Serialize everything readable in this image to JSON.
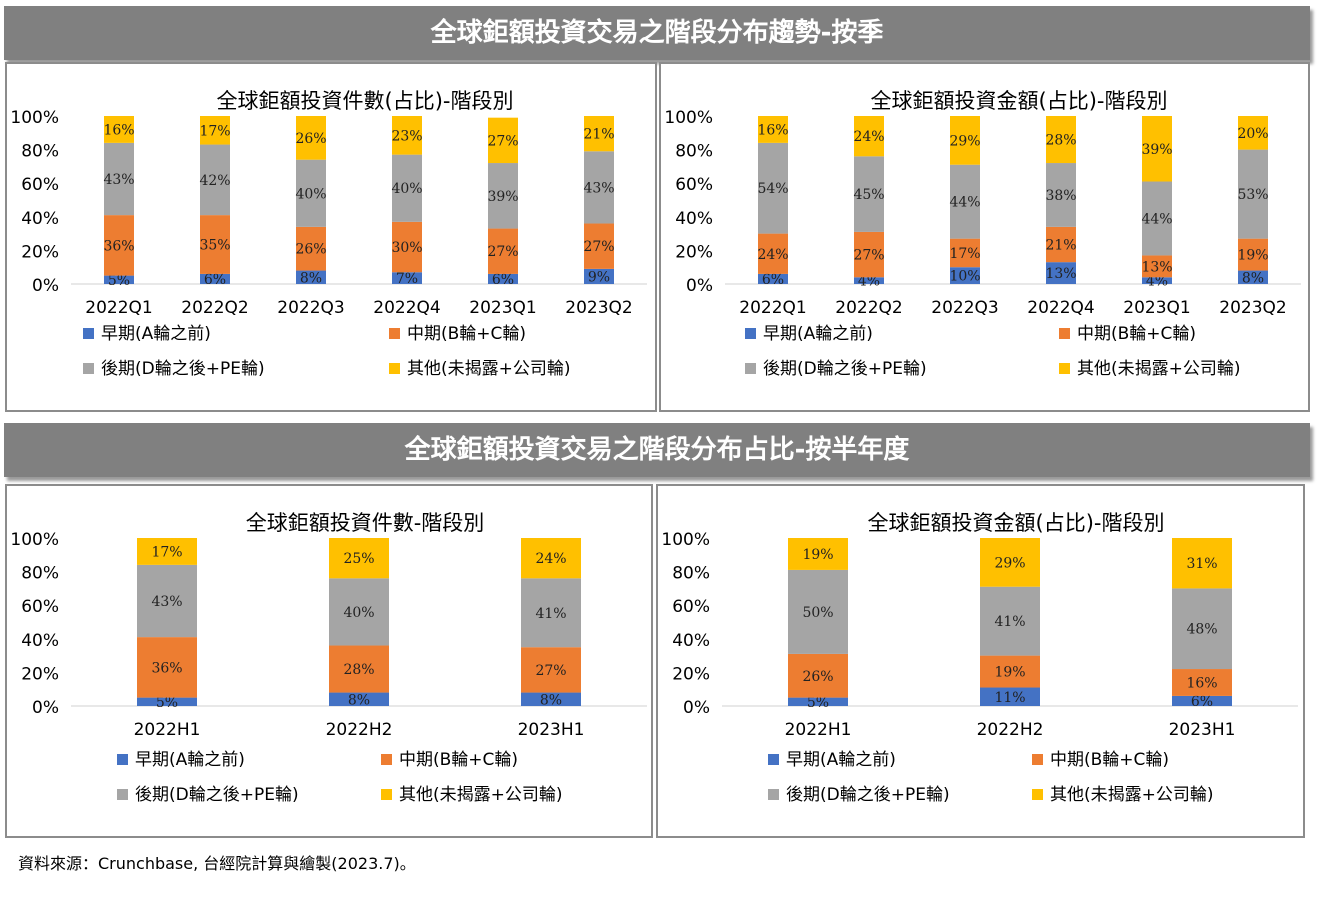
{
  "banners": {
    "quarterly": "全球鉅額投資交易之階段分布趨勢-按季",
    "half_year": "全球鉅額投資交易之階段分布占比-按半年度"
  },
  "colors": {
    "early": "#4472C4",
    "mid": "#ED7D31",
    "late": "#A5A5A5",
    "other": "#FFC000"
  },
  "legend": [
    "早期(A輪之前)",
    "中期(B輪+C輪)",
    "後期(D輪之後+PE輪)",
    "其他(未揭露+公司輪)"
  ],
  "source": "資料來源：Crunchbase, 台經院計算與繪製(2023.7)。",
  "chart_data": [
    {
      "type": "bar",
      "stacked": true,
      "title": "全球鉅額投資件數(占比)-階段別",
      "categories": [
        "2022Q1",
        "2022Q2",
        "2022Q3",
        "2022Q4",
        "2023Q1",
        "2023Q2"
      ],
      "ylim": [
        0,
        100
      ],
      "yticks": [
        "0%",
        "20%",
        "40%",
        "60%",
        "80%",
        "100%"
      ],
      "series": [
        {
          "name": "早期(A輪之前)",
          "values": [
            5,
            6,
            8,
            7,
            6,
            9
          ]
        },
        {
          "name": "中期(B輪+C輪)",
          "values": [
            36,
            35,
            26,
            30,
            27,
            27
          ]
        },
        {
          "name": "後期(D輪之後+PE輪)",
          "values": [
            43,
            42,
            40,
            40,
            39,
            43
          ]
        },
        {
          "name": "其他(未揭露+公司輪)",
          "values": [
            16,
            17,
            26,
            23,
            27,
            21
          ]
        }
      ],
      "legend_position": "bottom"
    },
    {
      "type": "bar",
      "stacked": true,
      "title": "全球鉅額投資金額(占比)-階段別",
      "categories": [
        "2022Q1",
        "2022Q2",
        "2022Q3",
        "2022Q4",
        "2023Q1",
        "2023Q2"
      ],
      "ylim": [
        0,
        100
      ],
      "yticks": [
        "0%",
        "20%",
        "40%",
        "60%",
        "80%",
        "100%"
      ],
      "series": [
        {
          "name": "早期(A輪之前)",
          "values": [
            6,
            4,
            10,
            13,
            4,
            8
          ]
        },
        {
          "name": "中期(B輪+C輪)",
          "values": [
            24,
            27,
            17,
            21,
            13,
            19
          ]
        },
        {
          "name": "後期(D輪之後+PE輪)",
          "values": [
            54,
            45,
            44,
            38,
            44,
            53
          ]
        },
        {
          "name": "其他(未揭露+公司輪)",
          "values": [
            16,
            24,
            29,
            28,
            39,
            20
          ]
        }
      ],
      "legend_position": "bottom"
    },
    {
      "type": "bar",
      "stacked": true,
      "title": "全球鉅額投資件數-階段別",
      "categories": [
        "2022H1",
        "2022H2",
        "2023H1"
      ],
      "ylim": [
        0,
        100
      ],
      "yticks": [
        "0%",
        "20%",
        "40%",
        "60%",
        "80%",
        "100%"
      ],
      "series": [
        {
          "name": "早期(A輪之前)",
          "values": [
            5,
            8,
            8
          ]
        },
        {
          "name": "中期(B輪+C輪)",
          "values": [
            36,
            28,
            27
          ]
        },
        {
          "name": "後期(D輪之後+PE輪)",
          "values": [
            43,
            40,
            41
          ]
        },
        {
          "name": "其他(未揭露+公司輪)",
          "values": [
            17,
            25,
            24
          ]
        }
      ],
      "legend_position": "bottom"
    },
    {
      "type": "bar",
      "stacked": true,
      "title": "全球鉅額投資金額(占比)-階段別",
      "categories": [
        "2022H1",
        "2022H2",
        "2023H1"
      ],
      "ylim": [
        0,
        100
      ],
      "yticks": [
        "0%",
        "20%",
        "40%",
        "60%",
        "80%",
        "100%"
      ],
      "series": [
        {
          "name": "早期(A輪之前)",
          "values": [
            5,
            11,
            6
          ]
        },
        {
          "name": "中期(B輪+C輪)",
          "values": [
            26,
            19,
            16
          ]
        },
        {
          "name": "後期(D輪之後+PE輪)",
          "values": [
            50,
            41,
            48
          ]
        },
        {
          "name": "其他(未揭露+公司輪)",
          "values": [
            19,
            29,
            31
          ]
        }
      ],
      "legend_position": "bottom"
    }
  ]
}
